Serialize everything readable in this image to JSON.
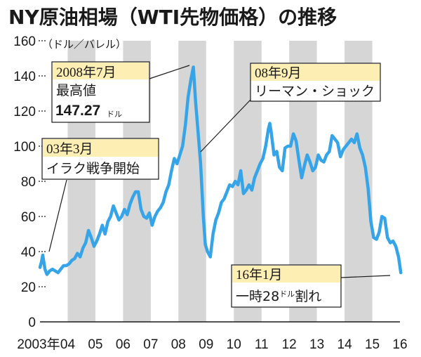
{
  "chart_data": {
    "type": "line",
    "title": "NY原油相場（WTI先物価格）の推移",
    "ylabel": "（ドル／バレル）",
    "ylim": [
      0,
      160
    ],
    "y_ticks": [
      0,
      20,
      40,
      60,
      80,
      100,
      120,
      140,
      160
    ],
    "x_ticks": [
      "2003年",
      "04",
      "05",
      "06",
      "07",
      "08",
      "09",
      "10",
      "11",
      "12",
      "13",
      "14",
      "15",
      "16"
    ],
    "xlim": [
      2003.0,
      2016.0
    ],
    "grid": "alternating vertical bands",
    "line_color": "#35a4e8",
    "band_color": "#d6d6d6",
    "callout_fill": "#fdeeb4",
    "series": [
      {
        "x": [
          2003.0,
          2003.05,
          2003.1,
          2003.18,
          2003.25,
          2003.35,
          2003.45,
          2003.55,
          2003.65,
          2003.75,
          2003.85,
          2003.95,
          2004.05,
          2004.15,
          2004.25,
          2004.35,
          2004.45,
          2004.55,
          2004.65,
          2004.75,
          2004.85,
          2004.95,
          2005.05,
          2005.15,
          2005.25,
          2005.35,
          2005.45,
          2005.55,
          2005.65,
          2005.75,
          2005.85,
          2005.95,
          2006.05,
          2006.15,
          2006.25,
          2006.35,
          2006.45,
          2006.55,
          2006.65,
          2006.75,
          2006.85,
          2006.95,
          2007.05,
          2007.15,
          2007.25,
          2007.35,
          2007.45,
          2007.55,
          2007.65,
          2007.75,
          2007.85,
          2007.95,
          2008.05,
          2008.15,
          2008.25,
          2008.35,
          2008.45,
          2008.54,
          2008.62,
          2008.7,
          2008.8,
          2008.9,
          2008.97,
          2009.05,
          2009.15,
          2009.25,
          2009.35,
          2009.45,
          2009.55,
          2009.65,
          2009.75,
          2009.85,
          2009.95,
          2010.05,
          2010.15,
          2010.25,
          2010.35,
          2010.45,
          2010.55,
          2010.65,
          2010.75,
          2010.85,
          2010.95,
          2011.05,
          2011.15,
          2011.25,
          2011.3,
          2011.35,
          2011.45,
          2011.55,
          2011.65,
          2011.75,
          2011.85,
          2011.95,
          2012.05,
          2012.15,
          2012.25,
          2012.35,
          2012.45,
          2012.55,
          2012.65,
          2012.75,
          2012.85,
          2012.95,
          2013.05,
          2013.15,
          2013.25,
          2013.35,
          2013.45,
          2013.55,
          2013.65,
          2013.75,
          2013.85,
          2013.95,
          2014.05,
          2014.15,
          2014.25,
          2014.35,
          2014.45,
          2014.55,
          2014.65,
          2014.75,
          2014.85,
          2014.95,
          2015.05,
          2015.15,
          2015.25,
          2015.35,
          2015.45,
          2015.55,
          2015.65,
          2015.75,
          2015.85,
          2015.95,
          2016.03
        ],
        "values": [
          31,
          34,
          38,
          30,
          27,
          29,
          30,
          29,
          28,
          30,
          32,
          32,
          33,
          35,
          36,
          39,
          37,
          42,
          45,
          52,
          48,
          43,
          46,
          50,
          55,
          50,
          57,
          60,
          66,
          62,
          58,
          60,
          64,
          61,
          67,
          71,
          74,
          74,
          64,
          60,
          59,
          62,
          55,
          60,
          63,
          65,
          68,
          74,
          78,
          86,
          93,
          90,
          95,
          100,
          112,
          128,
          138,
          145,
          125,
          110,
          90,
          60,
          44,
          40,
          37,
          50,
          58,
          62,
          68,
          70,
          74,
          78,
          77,
          80,
          78,
          86,
          73,
          75,
          78,
          75,
          82,
          86,
          90,
          93,
          100,
          110,
          113,
          108,
          95,
          97,
          88,
          86,
          99,
          100,
          100,
          107,
          103,
          92,
          82,
          89,
          95,
          91,
          86,
          88,
          95,
          92,
          91,
          95,
          97,
          106,
          104,
          102,
          94,
          98,
          100,
          102,
          104,
          102,
          107,
          99,
          95,
          88,
          76,
          57,
          48,
          47,
          51,
          60,
          59,
          48,
          45,
          46,
          43,
          37,
          28
        ]
      }
    ],
    "annotations": [
      {
        "head": "2008年7月",
        "lines": [
          "最高値",
          "147.27"
        ],
        "unit": "ドル",
        "x": 2008.54,
        "y": 145
      },
      {
        "head": "08年9月",
        "lines": [
          "リーマン・ショック"
        ],
        "x": 2008.7,
        "y": 95
      },
      {
        "head": "03年3月",
        "lines": [
          "イラク戦争開始"
        ],
        "x": 2003.18,
        "y": 38
      },
      {
        "head": "16年1月",
        "lines": [
          "一時28",
          "割れ"
        ],
        "unit": "ドル",
        "x": 2016.03,
        "y": 28
      }
    ]
  }
}
